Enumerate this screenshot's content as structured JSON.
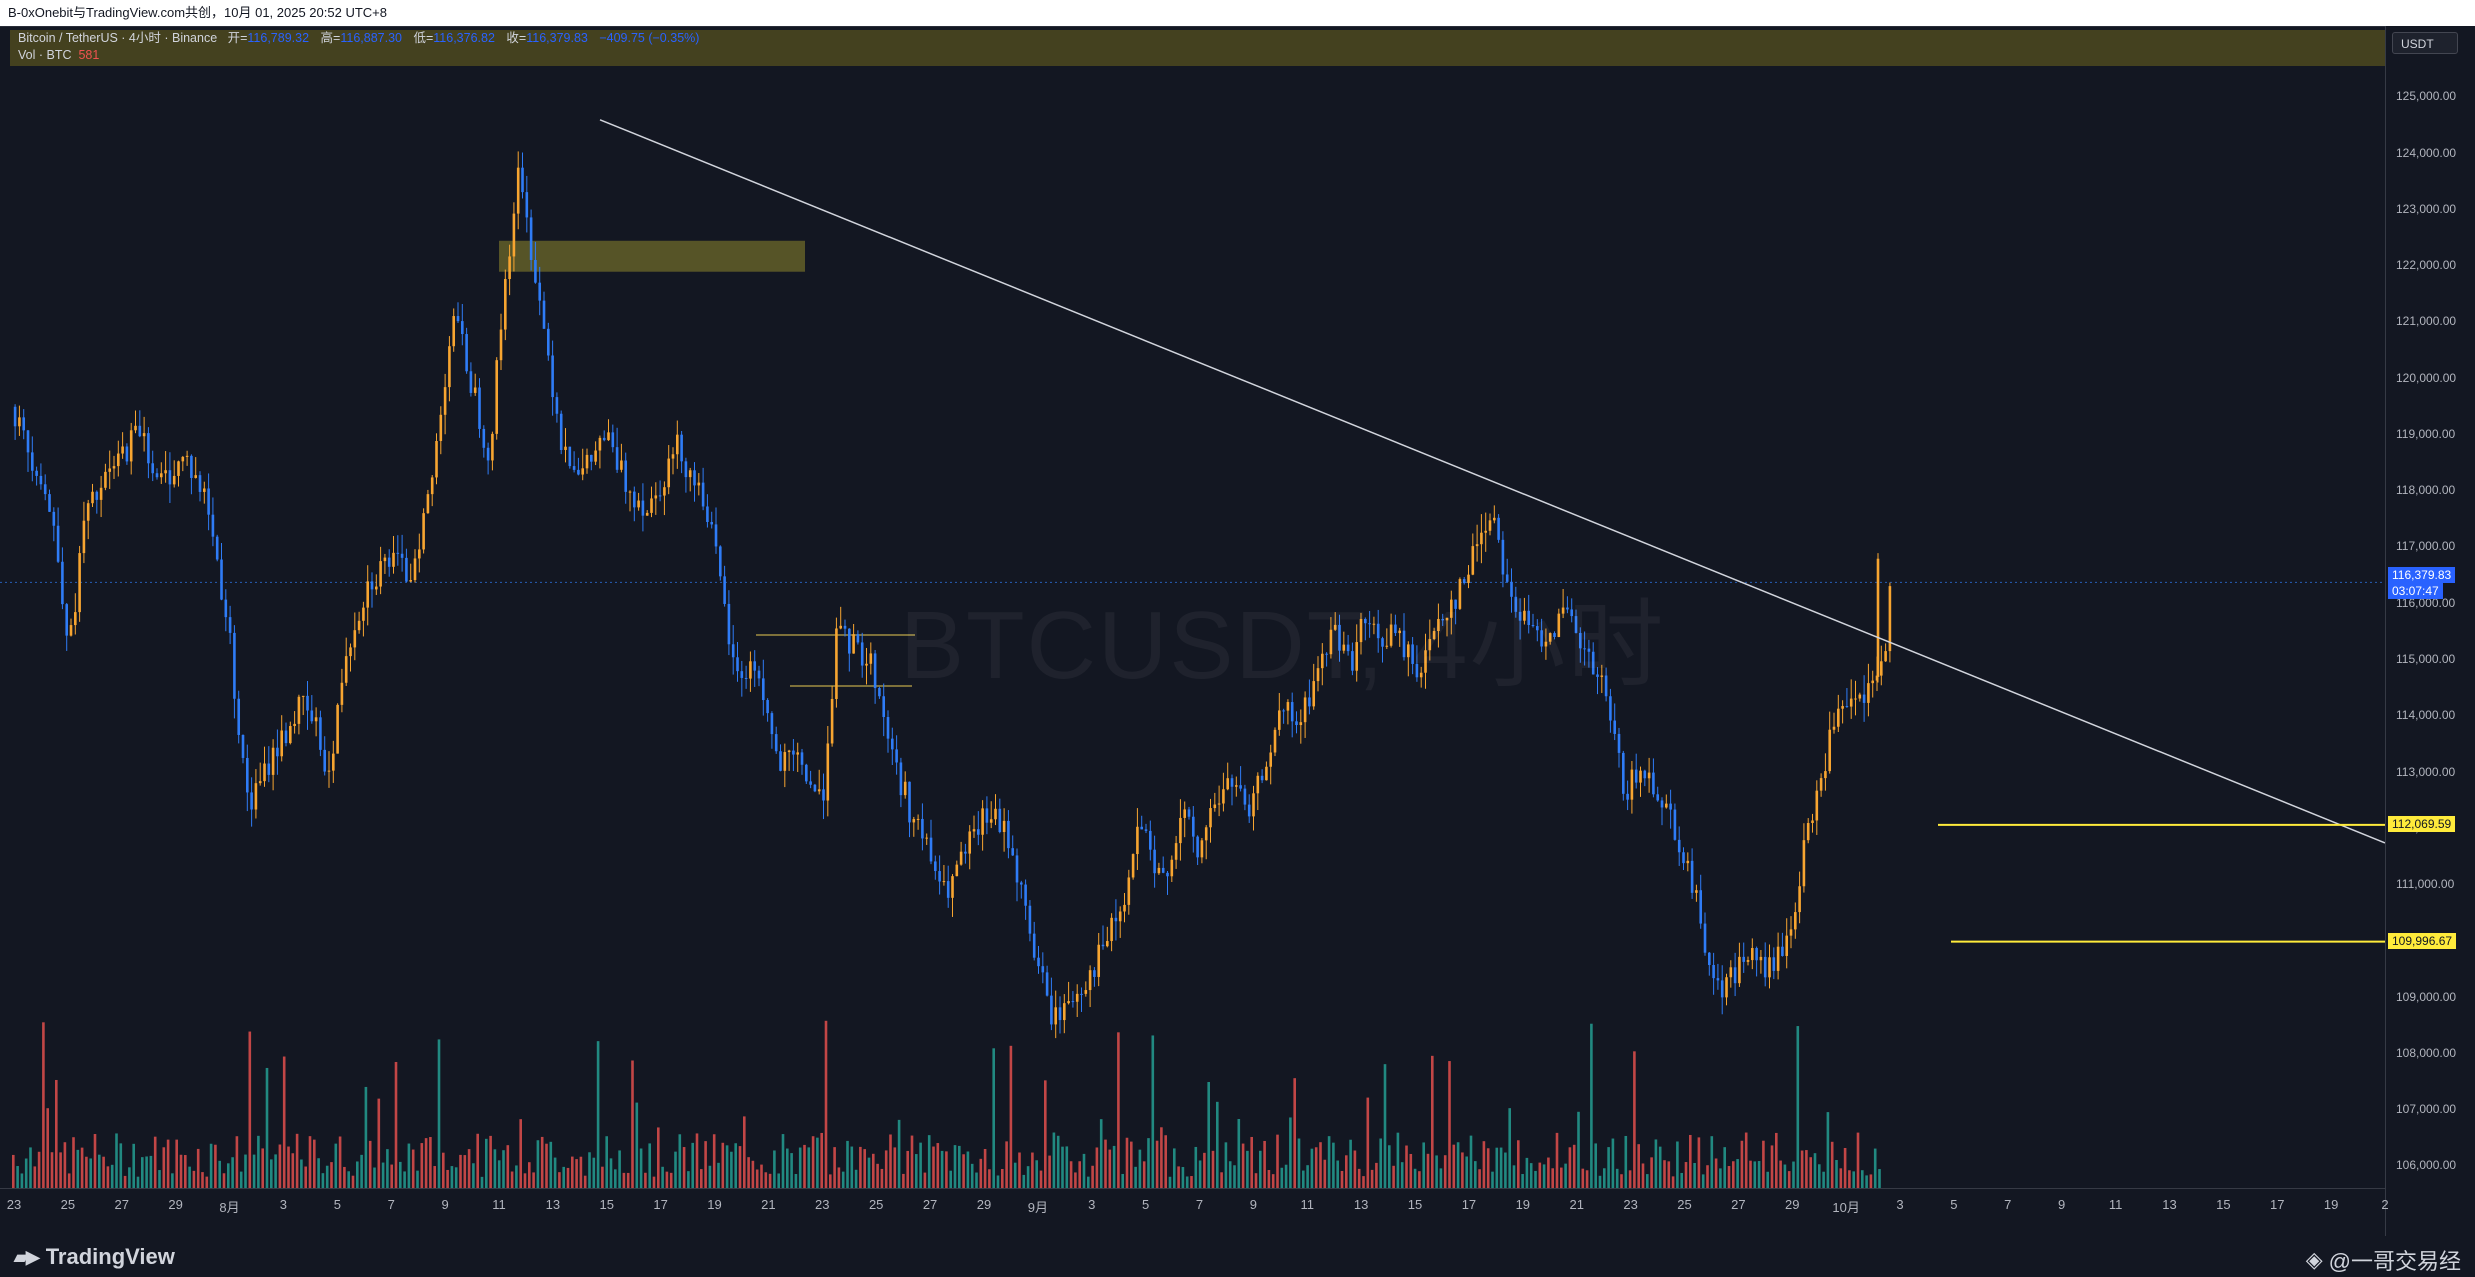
{
  "topbar": {
    "text": "B-0xOnebit与TradingView.com共创，10月 01, 2025 20:52 UTC+8"
  },
  "legend": {
    "symbol": "Bitcoin / TetherUS · 4小时 · Binance",
    "open_label": "开=",
    "open_value": "116,789.32",
    "high_label": "高=",
    "high_value": "116,887.30",
    "low_label": "低=",
    "low_value": "116,376.82",
    "close_label": "收=",
    "close_value": "116,379.83",
    "change": "−409.75 (−0.35%)",
    "vol_label": "Vol · BTC",
    "vol_value": "581"
  },
  "watermark_symbol": "BTCUSDT, 4小时",
  "currency": "USDT",
  "price_tags": {
    "current_price": "116,379.83",
    "countdown": "03:07:47",
    "level1": "112,069.59",
    "level2": "109,996.67"
  },
  "colors": {
    "background": "#131722",
    "up_candle": "#f7a531",
    "down_candle": "#2f7cf6",
    "vol_up": "#26a69a",
    "vol_down": "#ef5350",
    "level": "#ffeb3b",
    "trendline": "#d1d4dc",
    "zone": "#6e6a2a"
  },
  "footer": {
    "logo_icon": "tradingview-logo-icon",
    "logo_text": "TradingView",
    "credit": "@一哥交易经",
    "credit_icon": "binance-logo-icon"
  },
  "chart_data": {
    "type": "candlestick",
    "y_axis": {
      "range": [
        105600,
        126000
      ],
      "ticks": [
        "125,000.00",
        "124,000.00",
        "123,000.00",
        "122,000.00",
        "121,000.00",
        "120,000.00",
        "119,000.00",
        "118,000.00",
        "117,000.00",
        "116,000.00",
        "115,000.00",
        "114,000.00",
        "113,000.00",
        "112,000.00",
        "111,000.00",
        "110,000.00",
        "109,000.00",
        "108,000.00",
        "107,000.00",
        "106,000.00"
      ]
    },
    "x_axis": {
      "ticks": [
        "23",
        "25",
        "27",
        "29",
        "8月",
        "3",
        "5",
        "7",
        "9",
        "11",
        "13",
        "15",
        "17",
        "19",
        "21",
        "23",
        "25",
        "27",
        "29",
        "9月",
        "3",
        "5",
        "7",
        "9",
        "11",
        "13",
        "15",
        "17",
        "19",
        "21",
        "23",
        "25",
        "27",
        "29",
        "10月",
        "3",
        "5",
        "7",
        "9",
        "11",
        "13",
        "15",
        "17",
        "19",
        "2"
      ]
    },
    "price_path": [
      [
        0,
        119500
      ],
      [
        20,
        118800
      ],
      [
        40,
        118300
      ],
      [
        60,
        117200
      ],
      [
        80,
        115200
      ],
      [
        100,
        117500
      ],
      [
        140,
        118400
      ],
      [
        180,
        119200
      ],
      [
        200,
        118100
      ],
      [
        240,
        118600
      ],
      [
        270,
        117800
      ],
      [
        300,
        115500
      ],
      [
        320,
        113000
      ],
      [
        330,
        112400
      ],
      [
        360,
        113300
      ],
      [
        400,
        114200
      ],
      [
        420,
        113800
      ],
      [
        440,
        112900
      ],
      [
        460,
        115100
      ],
      [
        490,
        116300
      ],
      [
        520,
        116800
      ],
      [
        550,
        116500
      ],
      [
        580,
        118100
      ],
      [
        610,
        121200
      ],
      [
        640,
        119700
      ],
      [
        660,
        118600
      ],
      [
        680,
        121500
      ],
      [
        700,
        123600
      ],
      [
        720,
        122200
      ],
      [
        760,
        118900
      ],
      [
        790,
        118300
      ],
      [
        820,
        119000
      ],
      [
        850,
        118100
      ],
      [
        880,
        117700
      ],
      [
        920,
        118800
      ],
      [
        960,
        117800
      ],
      [
        980,
        116300
      ],
      [
        1000,
        114700
      ],
      [
        1030,
        114900
      ],
      [
        1060,
        113100
      ],
      [
        1090,
        113200
      ],
      [
        1120,
        112400
      ],
      [
        1140,
        115400
      ],
      [
        1160,
        115300
      ],
      [
        1190,
        114900
      ],
      [
        1220,
        113200
      ],
      [
        1240,
        112400
      ],
      [
        1270,
        111500
      ],
      [
        1290,
        110800
      ],
      [
        1320,
        111600
      ],
      [
        1350,
        112300
      ],
      [
        1380,
        111800
      ],
      [
        1400,
        110600
      ],
      [
        1420,
        109500
      ],
      [
        1440,
        108600
      ],
      [
        1460,
        108900
      ],
      [
        1490,
        109400
      ],
      [
        1510,
        109900
      ],
      [
        1540,
        110700
      ],
      [
        1560,
        112200
      ],
      [
        1580,
        111100
      ],
      [
        1600,
        111400
      ],
      [
        1620,
        112300
      ],
      [
        1640,
        111500
      ],
      [
        1660,
        112400
      ],
      [
        1690,
        112900
      ],
      [
        1710,
        112100
      ],
      [
        1740,
        113500
      ],
      [
        1760,
        114100
      ],
      [
        1780,
        113800
      ],
      [
        1800,
        114600
      ],
      [
        1830,
        115600
      ],
      [
        1850,
        114900
      ],
      [
        1870,
        115700
      ],
      [
        1890,
        115300
      ],
      [
        1910,
        115500
      ],
      [
        1930,
        115100
      ],
      [
        1950,
        114800
      ],
      [
        1970,
        115700
      ],
      [
        1990,
        116000
      ],
      [
        2010,
        116400
      ],
      [
        2030,
        117300
      ],
      [
        2050,
        117600
      ],
      [
        2070,
        116200
      ],
      [
        2090,
        115700
      ],
      [
        2110,
        115400
      ],
      [
        2130,
        115600
      ],
      [
        2150,
        115800
      ],
      [
        2170,
        115200
      ],
      [
        2200,
        114500
      ],
      [
        2230,
        112700
      ],
      [
        2260,
        113000
      ],
      [
        2290,
        112400
      ],
      [
        2320,
        111200
      ],
      [
        2340,
        110100
      ],
      [
        2360,
        109100
      ],
      [
        2380,
        109400
      ],
      [
        2400,
        109800
      ],
      [
        2420,
        109500
      ],
      [
        2440,
        109600
      ],
      [
        2460,
        110200
      ],
      [
        2480,
        111700
      ],
      [
        2500,
        112800
      ],
      [
        2520,
        113900
      ],
      [
        2540,
        114100
      ],
      [
        2560,
        114300
      ],
      [
        2575,
        114500
      ],
      [
        2590,
        115200
      ],
      [
        2600,
        116600
      ]
    ],
    "trendline": {
      "start": [
        "8月14",
        124600
      ],
      "end": [
        "10月22",
        111800
      ]
    },
    "horizontal_levels": [
      112069.59,
      109996.67
    ],
    "current_price": 116379.83,
    "zones": [
      {
        "from_price": 121900,
        "to_price": 122450
      }
    ]
  }
}
